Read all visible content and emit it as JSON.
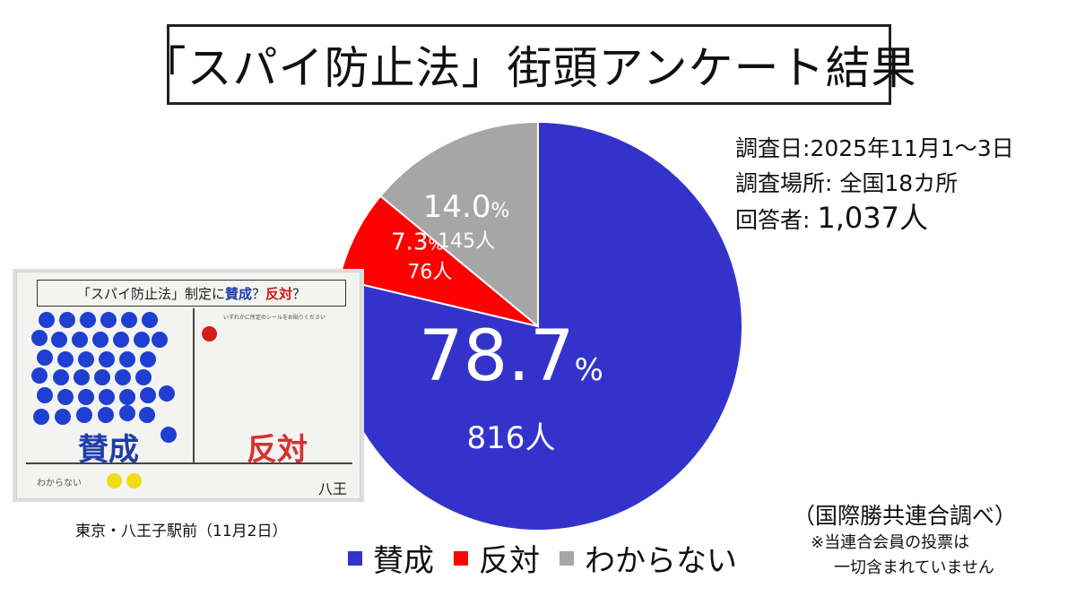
{
  "title": "「スパイ防止法」街頭アンケート結果",
  "survey": {
    "date_label": "調査日",
    "date_value": "2025年11月1〜3日",
    "location_label": "調査場所",
    "location_value": "全国18カ所",
    "respondents_label": "回答者",
    "respondents_value": "1,037",
    "respondents_unit": "人"
  },
  "chart_data": {
    "type": "pie",
    "start_angle_deg": 0,
    "direction": "clockwise",
    "slices": [
      {
        "label": "賛成",
        "percent": 78.7,
        "count": 816,
        "color": "#3333cc",
        "percent_text": "78.7",
        "count_text": "816人"
      },
      {
        "label": "反対",
        "percent": 7.3,
        "count": 76,
        "color": "#ff0000",
        "percent_text": "7.3",
        "count_text": "76人"
      },
      {
        "label": "わからない",
        "percent": 14.0,
        "count": 145,
        "color": "#a6a6a6",
        "percent_text": "14.0",
        "count_text": "145人"
      }
    ],
    "percent_symbol": "%",
    "legend_position": "bottom"
  },
  "photo": {
    "board_title_prefix": "「スパイ防止法」制定に",
    "board_yes": "賛成",
    "board_q1": "？",
    "board_no": "反対",
    "board_q2": "？",
    "board_note": "いずれかに所定のシールをお貼りください",
    "board_yes_label": "賛成",
    "board_no_label": "反対",
    "board_dk_label": "わからない",
    "board_place": "八王子",
    "caption": "東京・八王子駅前（11月2日）"
  },
  "source": "（国際勝共連合調べ）",
  "disclaimer_line1": "※当連合会員の投票は",
  "disclaimer_line2": "一切含まれていません"
}
